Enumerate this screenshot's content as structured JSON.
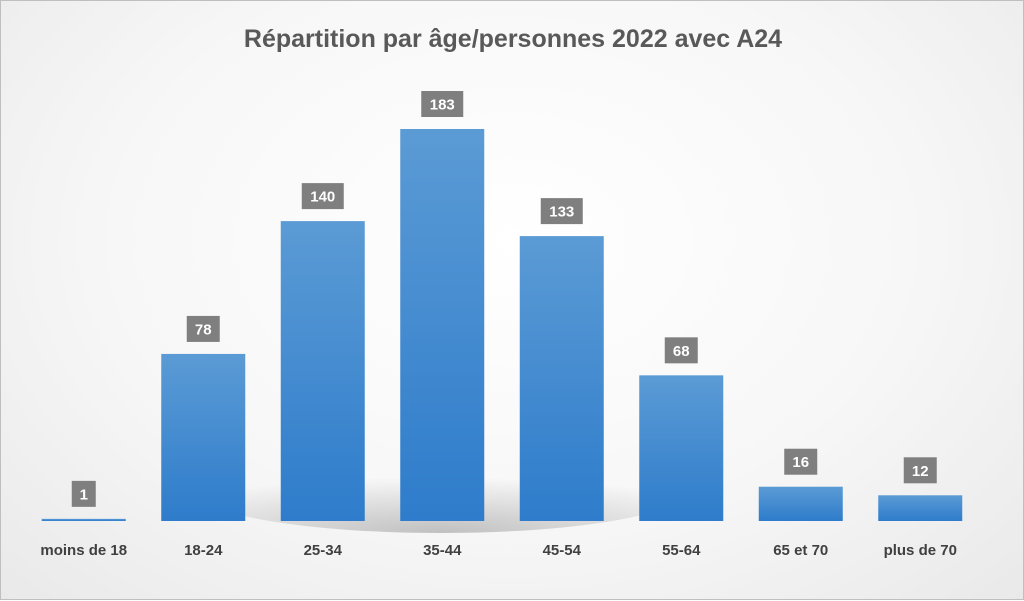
{
  "chart_data": {
    "type": "bar",
    "title": "Répartition par âge/personnes 2022 avec A24",
    "categories": [
      "moins de 18",
      "18-24",
      "25-34",
      "35-44",
      "45-54",
      "55-64",
      "65 et 70",
      "plus de 70"
    ],
    "values": [
      1,
      78,
      140,
      183,
      133,
      68,
      16,
      12
    ],
    "xlabel": "",
    "ylabel": "",
    "ylim": [
      0,
      183
    ],
    "grid": false,
    "legend": "none",
    "colors": {
      "bar_top": "#5b9bd5",
      "bar_bottom": "#2e7ccb",
      "label_box": "#7f7f7f",
      "label_text": "#ffffff",
      "axis_text": "#404040",
      "title": "#595959"
    }
  }
}
